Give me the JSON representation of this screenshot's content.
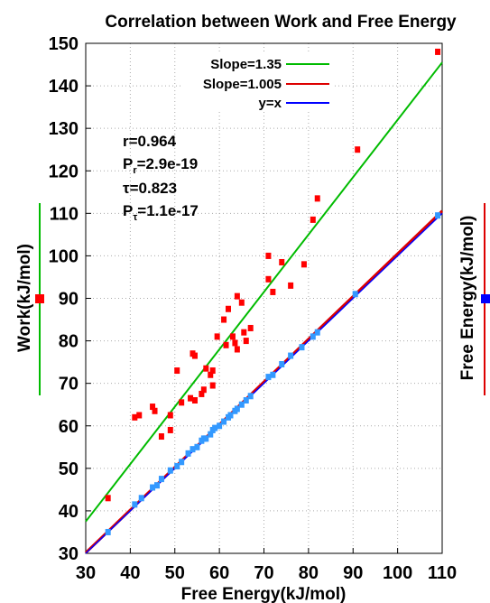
{
  "chart_data": {
    "type": "scatter",
    "title": "Correlation between Work and Free Energy",
    "xlabel": "Free Energy(kJ/mol)",
    "ylabel": "Work(kJ/mol)",
    "y2label": "Free Energy(kJ/mol)",
    "xlim": [
      30,
      110
    ],
    "ylim": [
      30,
      150
    ],
    "x_ticks": [
      "30",
      "40",
      "50",
      "60",
      "70",
      "80",
      "90",
      "100",
      "110"
    ],
    "y_ticks": [
      "30",
      "40",
      "50",
      "60",
      "70",
      "80",
      "90",
      "100",
      "110",
      "120",
      "130",
      "140",
      "150"
    ],
    "grid": true,
    "legend_position": "top-center",
    "stats": {
      "r": "r=0.964",
      "pr_label": "P",
      "pr_sub": "r",
      "pr_value": "=2.9e-19",
      "tau": "τ=0.823",
      "pt_label": "P",
      "pt_sub": "τ",
      "pt_value": "=1.1e-17"
    },
    "lines": [
      {
        "name": "Slope=1.35",
        "color": "#00bb00",
        "slope": 1.35,
        "intercept": -3.0
      },
      {
        "name": "Slope=1.005",
        "color": "#dd0000",
        "slope": 1.005,
        "intercept": 0.0
      },
      {
        "name": "y=x",
        "color": "#0000ff",
        "slope": 1.0,
        "intercept": 0.0
      }
    ],
    "series": [
      {
        "name": "Work",
        "color": "#ff0000",
        "points": [
          [
            35,
            43
          ],
          [
            41,
            62
          ],
          [
            42,
            62.5
          ],
          [
            45,
            64.5
          ],
          [
            45.5,
            63.5
          ],
          [
            47,
            57.5
          ],
          [
            49,
            59
          ],
          [
            49,
            62.5
          ],
          [
            50.5,
            73
          ],
          [
            51.5,
            65.5
          ],
          [
            53.5,
            66.5
          ],
          [
            54,
            77
          ],
          [
            54.5,
            76.5
          ],
          [
            54.5,
            66
          ],
          [
            56,
            67.5
          ],
          [
            56.5,
            68.5
          ],
          [
            57,
            73.5
          ],
          [
            58,
            72
          ],
          [
            58.5,
            73
          ],
          [
            58.5,
            69.5
          ],
          [
            59.5,
            81
          ],
          [
            61,
            85
          ],
          [
            61.5,
            79
          ],
          [
            62,
            87.5
          ],
          [
            63,
            81
          ],
          [
            63.5,
            79.5
          ],
          [
            64,
            90.5
          ],
          [
            64,
            78
          ],
          [
            65,
            89
          ],
          [
            65.5,
            82
          ],
          [
            66,
            80
          ],
          [
            67,
            83
          ],
          [
            71,
            94.5
          ],
          [
            71,
            100
          ],
          [
            72,
            91.5
          ],
          [
            74,
            98.5
          ],
          [
            76,
            93
          ],
          [
            79,
            98
          ],
          [
            81,
            108.5
          ],
          [
            82,
            113.5
          ],
          [
            91,
            125
          ],
          [
            109,
            148
          ]
        ]
      },
      {
        "name": "Free Energy",
        "color": "#3399ff",
        "points": [
          [
            35,
            35
          ],
          [
            41,
            41.5
          ],
          [
            42.5,
            43
          ],
          [
            45,
            45.5
          ],
          [
            46,
            46
          ],
          [
            47,
            47.5
          ],
          [
            49,
            49.5
          ],
          [
            50.5,
            50.5
          ],
          [
            51.5,
            51.5
          ],
          [
            53,
            53.5
          ],
          [
            54,
            54.5
          ],
          [
            55,
            55
          ],
          [
            56,
            56.5
          ],
          [
            56.5,
            57
          ],
          [
            57,
            57
          ],
          [
            58,
            58
          ],
          [
            58.5,
            59
          ],
          [
            59,
            59.5
          ],
          [
            60,
            60
          ],
          [
            61,
            61
          ],
          [
            62,
            62
          ],
          [
            62.5,
            62.5
          ],
          [
            63.5,
            63.5
          ],
          [
            64,
            64
          ],
          [
            65,
            65
          ],
          [
            66,
            66
          ],
          [
            67,
            67
          ],
          [
            71,
            71.5
          ],
          [
            72,
            72
          ],
          [
            74,
            74.5
          ],
          [
            76,
            76.5
          ],
          [
            78.5,
            78.5
          ],
          [
            81,
            81
          ],
          [
            82,
            82
          ],
          [
            90.5,
            91
          ],
          [
            109,
            109.5
          ]
        ]
      }
    ],
    "side_markers": {
      "left_color": "#ff0000",
      "right_color": "#0000ff",
      "left_line_color": "#00bb00",
      "right_line_color": "#dd0000"
    }
  }
}
